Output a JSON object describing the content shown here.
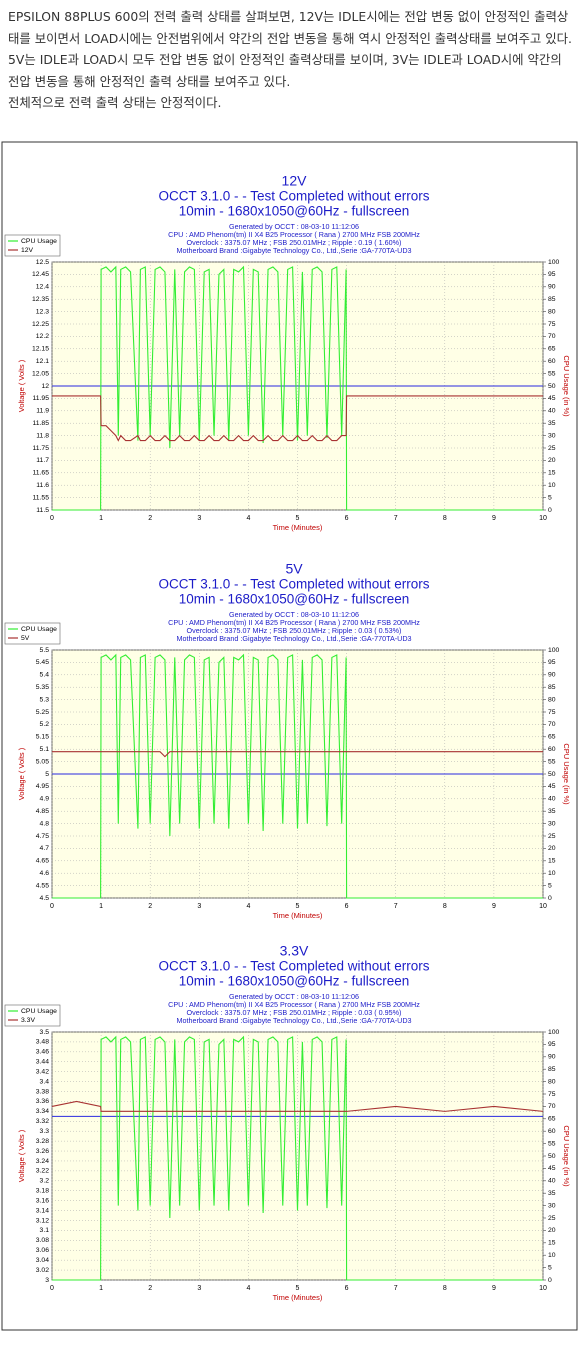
{
  "text": [
    "EPSILON 88PLUS 600의 전력 출력 상태를 살펴보면, 12V는 IDLE시에는 전압 변동 없이 안정적인 출력상태를 보이면서 LOAD시에는 안전범위에서 약간의 전압 변동을 통해 역시 안정적인 출력상태를 보여주고 있다. 5V는 IDLE과 LOAD시 모두 전압 변동 없이 안정적인 출력상태를 보이며, 3V는 IDLE과 LOAD시에 약간의 전압 변동을 통해 안정적인 출력 상태를 보여주고 있다.",
    "전체적으로 전력 출력 상태는 안정적이다."
  ],
  "chart_data": [
    {
      "type": "line",
      "title": "12V",
      "subtitle": [
        "OCCT 3.1.0 -  - Test Completed without errors",
        "10min - 1680x1050@60Hz - fullscreen"
      ],
      "info": [
        "Generated by OCCT : 08-03-10 11:12:06",
        "CPU : AMD Phenom(tm) II X4 B25 Processor ( Rana ) 2700 MHz FSB 200MHz",
        "Overclock : 3375.07 MHz ; FSB 250.01MHz ; Ripple : 0.19 ( 1.60%)",
        "Motherboard Brand :Gigabyte Technology Co., Ltd.,Serie :GA-770TA-UD3"
      ],
      "xlabel": "Time (Minutes)",
      "ylabel": "Voltage ( Volts )",
      "y2label": "CPU Usage (in %)",
      "x": [
        0,
        0.5,
        0.99,
        1.0,
        1.1,
        1.2,
        1.3,
        1.35,
        1.4,
        1.5,
        1.6,
        1.75,
        1.8,
        1.9,
        2.0,
        2.1,
        2.2,
        2.3,
        2.4,
        2.5,
        2.6,
        2.7,
        2.8,
        2.9,
        3.0,
        3.1,
        3.2,
        3.3,
        3.4,
        3.5,
        3.6,
        3.7,
        3.8,
        3.9,
        4.0,
        4.1,
        4.2,
        4.3,
        4.4,
        4.5,
        4.6,
        4.7,
        4.8,
        4.9,
        5.0,
        5.1,
        5.2,
        5.3,
        5.4,
        5.5,
        5.6,
        5.7,
        5.8,
        5.9,
        5.99,
        6.0,
        7,
        8,
        9,
        10
      ],
      "series": [
        {
          "name": "CPU Usage",
          "color": "#33ee33",
          "axis": "y2",
          "values": [
            0,
            0,
            0,
            97,
            98,
            96,
            98,
            30,
            97,
            98,
            96,
            28,
            97,
            98,
            30,
            97,
            98,
            96,
            25,
            97,
            30,
            96,
            98,
            97,
            28,
            96,
            97,
            30,
            95,
            97,
            28,
            97,
            96,
            98,
            30,
            97,
            96,
            27,
            97,
            98,
            96,
            30,
            97,
            98,
            28,
            96,
            30,
            97,
            98,
            96,
            29,
            97,
            98,
            30,
            97,
            0,
            0,
            0,
            0,
            0
          ]
        },
        {
          "name": "12V",
          "color": "#a83232",
          "values": [
            11.96,
            11.96,
            11.96,
            11.84,
            11.84,
            11.82,
            11.8,
            11.78,
            11.8,
            11.78,
            11.78,
            11.8,
            11.78,
            11.78,
            11.8,
            11.78,
            11.78,
            11.8,
            11.78,
            11.78,
            11.8,
            11.78,
            11.78,
            11.8,
            11.78,
            11.78,
            11.8,
            11.78,
            11.78,
            11.8,
            11.78,
            11.78,
            11.8,
            11.78,
            11.78,
            11.8,
            11.78,
            11.78,
            11.8,
            11.78,
            11.78,
            11.8,
            11.78,
            11.78,
            11.8,
            11.78,
            11.78,
            11.8,
            11.78,
            11.78,
            11.8,
            11.78,
            11.78,
            11.8,
            11.8,
            11.96,
            11.96,
            11.96,
            11.96,
            11.96
          ]
        }
      ],
      "hline": {
        "value": 12,
        "color": "#2a2ae0"
      },
      "xlim": [
        0,
        10
      ],
      "xticks": [
        0,
        1,
        2,
        3,
        4,
        5,
        6,
        7,
        8,
        9,
        10
      ],
      "ylim": [
        11.5,
        12.5
      ],
      "yticks": [
        11.5,
        11.55,
        11.6,
        11.65,
        11.7,
        11.75,
        11.8,
        11.85,
        11.9,
        11.95,
        12,
        12.05,
        12.1,
        12.15,
        12.2,
        12.25,
        12.3,
        12.35,
        12.4,
        12.45,
        12.5
      ],
      "y2lim": [
        0,
        100
      ],
      "y2ticks": [
        0,
        5,
        10,
        15,
        20,
        25,
        30,
        35,
        40,
        45,
        50,
        55,
        60,
        65,
        70,
        75,
        80,
        85,
        90,
        95,
        100
      ],
      "grid": true
    },
    {
      "type": "line",
      "title": "5V",
      "subtitle": [
        "OCCT 3.1.0 -  - Test Completed without errors",
        "10min - 1680x1050@60Hz - fullscreen"
      ],
      "info": [
        "Generated by OCCT : 08-03-10 11:12:06",
        "CPU : AMD Phenom(tm) II X4 B25 Processor ( Rana ) 2700 MHz FSB 200MHz",
        "Overclock : 3375.07 MHz ; FSB 250.01MHz ; Ripple : 0.03 ( 0.53%)",
        "Motherboard Brand :Gigabyte Technology Co., Ltd.,Serie :GA-770TA-UD3"
      ],
      "xlabel": "Time (Minutes)",
      "ylabel": "Voltage ( Volts )",
      "y2label": "CPU Usage (in %)",
      "x": [
        0,
        0.5,
        0.99,
        1.0,
        1.1,
        1.2,
        1.3,
        1.35,
        1.4,
        1.5,
        1.6,
        1.75,
        1.8,
        1.9,
        2.0,
        2.1,
        2.2,
        2.3,
        2.4,
        2.5,
        2.6,
        2.7,
        2.8,
        2.9,
        3.0,
        3.1,
        3.2,
        3.3,
        3.4,
        3.5,
        3.6,
        3.7,
        3.8,
        3.9,
        4.0,
        4.1,
        4.2,
        4.3,
        4.4,
        4.5,
        4.6,
        4.7,
        4.8,
        4.9,
        5.0,
        5.1,
        5.2,
        5.3,
        5.4,
        5.5,
        5.6,
        5.7,
        5.8,
        5.9,
        5.99,
        6.0,
        7,
        8,
        9,
        10
      ],
      "series": [
        {
          "name": "CPU Usage",
          "color": "#33ee33",
          "axis": "y2",
          "values": [
            0,
            0,
            0,
            97,
            98,
            96,
            98,
            30,
            97,
            98,
            96,
            28,
            97,
            98,
            30,
            97,
            98,
            96,
            25,
            97,
            30,
            96,
            98,
            97,
            28,
            96,
            97,
            30,
            95,
            97,
            28,
            97,
            96,
            98,
            30,
            97,
            96,
            27,
            97,
            98,
            96,
            30,
            97,
            98,
            28,
            96,
            30,
            97,
            98,
            96,
            29,
            97,
            98,
            30,
            97,
            0,
            0,
            0,
            0,
            0
          ]
        },
        {
          "name": "5V",
          "color": "#a83232",
          "values": [
            5.09,
            5.09,
            5.09,
            5.09,
            5.09,
            5.09,
            5.09,
            5.09,
            5.09,
            5.09,
            5.09,
            5.09,
            5.09,
            5.09,
            5.09,
            5.09,
            5.09,
            5.07,
            5.09,
            5.09,
            5.09,
            5.09,
            5.09,
            5.09,
            5.09,
            5.09,
            5.09,
            5.09,
            5.09,
            5.09,
            5.09,
            5.09,
            5.09,
            5.09,
            5.09,
            5.09,
            5.09,
            5.09,
            5.09,
            5.09,
            5.09,
            5.09,
            5.09,
            5.09,
            5.09,
            5.09,
            5.09,
            5.09,
            5.09,
            5.09,
            5.09,
            5.09,
            5.09,
            5.09,
            5.09,
            5.09,
            5.09,
            5.09,
            5.09,
            5.09
          ]
        }
      ],
      "hline": {
        "value": 5,
        "color": "#2a2ae0"
      },
      "xlim": [
        0,
        10
      ],
      "xticks": [
        0,
        1,
        2,
        3,
        4,
        5,
        6,
        7,
        8,
        9,
        10
      ],
      "ylim": [
        4.5,
        5.5
      ],
      "yticks": [
        4.5,
        4.55,
        4.6,
        4.65,
        4.7,
        4.75,
        4.8,
        4.85,
        4.9,
        4.95,
        5,
        5.05,
        5.1,
        5.15,
        5.2,
        5.25,
        5.3,
        5.35,
        5.4,
        5.45,
        5.5
      ],
      "y2lim": [
        0,
        100
      ],
      "y2ticks": [
        0,
        5,
        10,
        15,
        20,
        25,
        30,
        35,
        40,
        45,
        50,
        55,
        60,
        65,
        70,
        75,
        80,
        85,
        90,
        95,
        100
      ],
      "grid": true
    },
    {
      "type": "line",
      "title": "3.3V",
      "subtitle": [
        "OCCT 3.1.0 -  - Test Completed without errors",
        "10min - 1680x1050@60Hz - fullscreen"
      ],
      "info": [
        "Generated by OCCT : 08-03-10 11:12:06",
        "CPU : AMD Phenom(tm) II X4 B25 Processor ( Rana ) 2700 MHz FSB 200MHz",
        "Overclock : 3375.07 MHz ; FSB 250.01MHz ; Ripple : 0.03 ( 0.95%)",
        "Motherboard Brand :Gigabyte Technology Co., Ltd.,Serie :GA-770TA-UD3"
      ],
      "xlabel": "Time (Minutes)",
      "ylabel": "Voltage ( Volts )",
      "y2label": "CPU Usage (in %)",
      "x": [
        0,
        0.5,
        0.99,
        1.0,
        1.1,
        1.2,
        1.3,
        1.35,
        1.4,
        1.5,
        1.6,
        1.75,
        1.8,
        1.9,
        2.0,
        2.1,
        2.2,
        2.3,
        2.4,
        2.5,
        2.6,
        2.7,
        2.8,
        2.9,
        3.0,
        3.1,
        3.2,
        3.3,
        3.4,
        3.5,
        3.6,
        3.7,
        3.8,
        3.9,
        4.0,
        4.1,
        4.2,
        4.3,
        4.4,
        4.5,
        4.6,
        4.7,
        4.8,
        4.9,
        5.0,
        5.1,
        5.2,
        5.3,
        5.4,
        5.5,
        5.6,
        5.7,
        5.8,
        5.9,
        5.99,
        6.0,
        7,
        8,
        9,
        10
      ],
      "series": [
        {
          "name": "CPU Usage",
          "color": "#33ee33",
          "axis": "y2",
          "values": [
            0,
            0,
            0,
            97,
            98,
            96,
            98,
            30,
            97,
            98,
            96,
            28,
            97,
            98,
            30,
            97,
            98,
            96,
            25,
            97,
            30,
            96,
            98,
            97,
            28,
            96,
            97,
            30,
            95,
            97,
            28,
            97,
            96,
            98,
            30,
            97,
            96,
            27,
            97,
            98,
            96,
            30,
            97,
            98,
            28,
            96,
            30,
            97,
            98,
            96,
            29,
            97,
            98,
            30,
            97,
            0,
            0,
            0,
            0,
            0
          ]
        },
        {
          "name": "3.3V",
          "color": "#a83232",
          "values": [
            3.35,
            3.36,
            3.35,
            3.34,
            3.34,
            3.34,
            3.34,
            3.34,
            3.34,
            3.34,
            3.34,
            3.34,
            3.34,
            3.34,
            3.34,
            3.34,
            3.34,
            3.34,
            3.34,
            3.34,
            3.34,
            3.34,
            3.34,
            3.34,
            3.34,
            3.34,
            3.34,
            3.34,
            3.34,
            3.34,
            3.34,
            3.34,
            3.34,
            3.34,
            3.34,
            3.34,
            3.34,
            3.34,
            3.34,
            3.34,
            3.34,
            3.34,
            3.34,
            3.34,
            3.34,
            3.34,
            3.34,
            3.34,
            3.34,
            3.34,
            3.34,
            3.34,
            3.34,
            3.34,
            3.34,
            3.34,
            3.35,
            3.34,
            3.35,
            3.34
          ]
        }
      ],
      "hline": {
        "value": 3.33,
        "color": "#2a2ae0"
      },
      "xlim": [
        0,
        10
      ],
      "xticks": [
        0,
        1,
        2,
        3,
        4,
        5,
        6,
        7,
        8,
        9,
        10
      ],
      "ylim": [
        3,
        3.5
      ],
      "yticks": [
        3,
        3.02,
        3.04,
        3.06,
        3.08,
        3.1,
        3.12,
        3.14,
        3.16,
        3.18,
        3.2,
        3.22,
        3.24,
        3.26,
        3.28,
        3.3,
        3.32,
        3.34,
        3.36,
        3.38,
        3.4,
        3.42,
        3.44,
        3.46,
        3.48,
        3.5
      ],
      "y2lim": [
        0,
        100
      ],
      "y2ticks": [
        0,
        5,
        10,
        15,
        20,
        25,
        30,
        35,
        40,
        45,
        50,
        55,
        60,
        65,
        70,
        75,
        80,
        85,
        90,
        95,
        100
      ],
      "grid": true
    }
  ]
}
